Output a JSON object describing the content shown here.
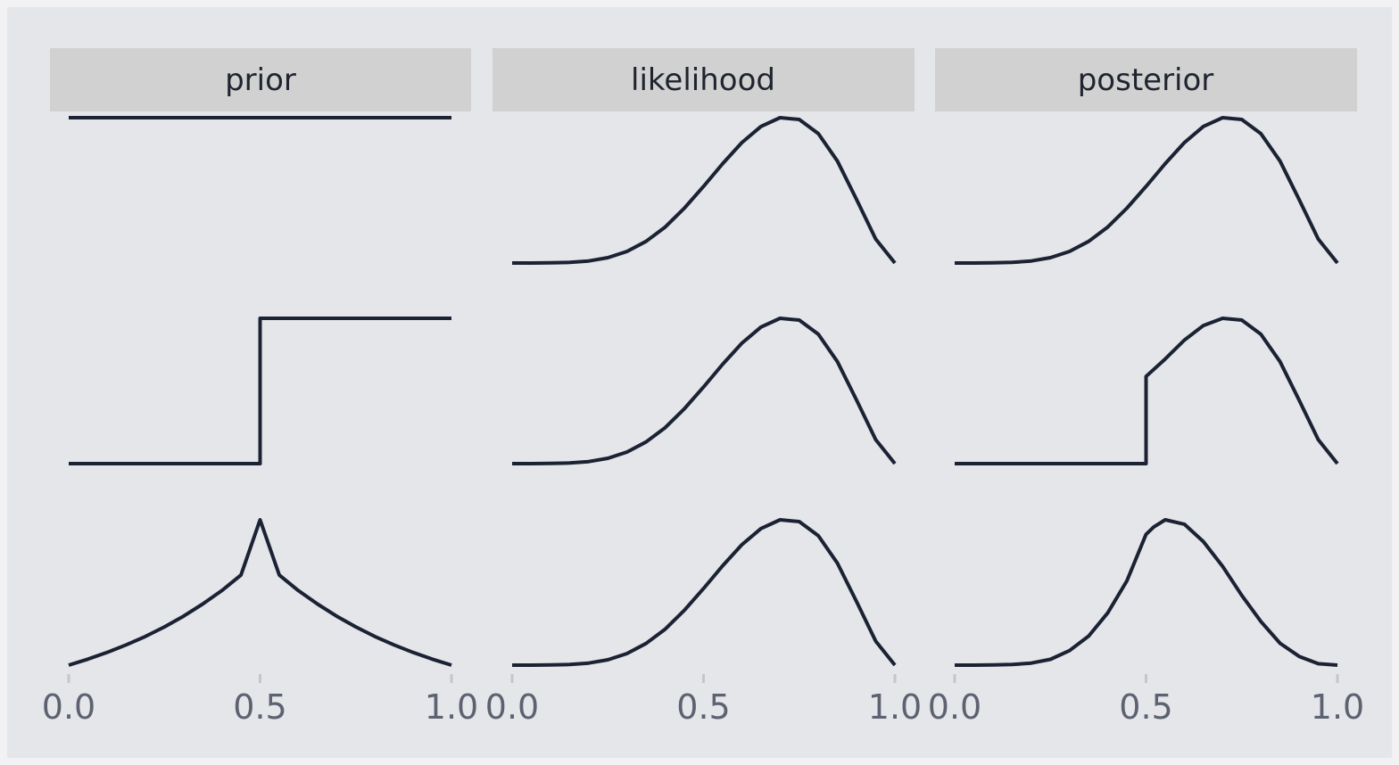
{
  "chart_data": {
    "type": "line",
    "facet_columns": [
      "prior",
      "likelihood",
      "posterior"
    ],
    "x_ticks": [
      "0.0",
      "0.5",
      "1.0"
    ],
    "xlim": [
      0,
      1
    ],
    "grid": false,
    "colors": {
      "page_background": "#f2f2f4",
      "panel_background": "#e5e6ea",
      "strip_background": "#d1d1d1",
      "line": "#1a2233"
    },
    "rows": [
      {
        "prior": {
          "x": [
            0,
            1
          ],
          "y": [
            1,
            1
          ]
        },
        "likelihood": {
          "x": [
            0,
            0.05,
            0.1,
            0.15,
            0.2,
            0.25,
            0.3,
            0.35,
            0.4,
            0.45,
            0.5,
            0.55,
            0.6,
            0.65,
            0.7,
            0.75,
            0.8,
            0.85,
            0.9,
            0.95,
            1.0
          ],
          "y": [
            0,
            0,
            0.001,
            0.004,
            0.014,
            0.037,
            0.08,
            0.149,
            0.248,
            0.377,
            0.527,
            0.684,
            0.828,
            0.94,
            1.0,
            0.988,
            0.89,
            0.701,
            0.436,
            0.165,
            0
          ]
        },
        "posterior": {
          "x": [
            0,
            0.05,
            0.1,
            0.15,
            0.2,
            0.25,
            0.3,
            0.35,
            0.4,
            0.45,
            0.5,
            0.55,
            0.6,
            0.65,
            0.7,
            0.75,
            0.8,
            0.85,
            0.9,
            0.95,
            1.0
          ],
          "y": [
            0,
            0,
            0.001,
            0.004,
            0.014,
            0.037,
            0.08,
            0.149,
            0.248,
            0.377,
            0.527,
            0.684,
            0.828,
            0.94,
            1.0,
            0.988,
            0.89,
            0.701,
            0.436,
            0.165,
            0
          ]
        }
      },
      {
        "prior": {
          "x": [
            0,
            0.5,
            0.5,
            1
          ],
          "y": [
            0,
            0,
            1,
            1
          ]
        },
        "likelihood": {
          "x": [
            0,
            0.05,
            0.1,
            0.15,
            0.2,
            0.25,
            0.3,
            0.35,
            0.4,
            0.45,
            0.5,
            0.55,
            0.6,
            0.65,
            0.7,
            0.75,
            0.8,
            0.85,
            0.9,
            0.95,
            1.0
          ],
          "y": [
            0,
            0,
            0.001,
            0.004,
            0.014,
            0.037,
            0.08,
            0.149,
            0.248,
            0.377,
            0.527,
            0.684,
            0.828,
            0.94,
            1.0,
            0.988,
            0.89,
            0.701,
            0.436,
            0.165,
            0
          ]
        },
        "posterior": {
          "x": [
            0,
            0.5,
            0.5,
            0.55,
            0.6,
            0.65,
            0.7,
            0.75,
            0.8,
            0.85,
            0.9,
            0.95,
            1.0
          ],
          "y": [
            0,
            0,
            0.6,
            0.72,
            0.85,
            0.95,
            1.0,
            0.988,
            0.89,
            0.701,
            0.436,
            0.165,
            0
          ]
        }
      },
      {
        "prior": {
          "x": [
            0,
            0.05,
            0.1,
            0.15,
            0.2,
            0.25,
            0.3,
            0.35,
            0.4,
            0.45,
            0.5,
            0.55,
            0.6,
            0.65,
            0.7,
            0.75,
            0.8,
            0.85,
            0.9,
            0.95,
            1.0
          ],
          "y": [
            0,
            0.041,
            0.087,
            0.139,
            0.197,
            0.263,
            0.337,
            0.42,
            0.513,
            0.62,
            1.0,
            0.62,
            0.513,
            0.42,
            0.337,
            0.263,
            0.197,
            0.139,
            0.087,
            0.041,
            0
          ]
        },
        "likelihood": {
          "x": [
            0,
            0.05,
            0.1,
            0.15,
            0.2,
            0.25,
            0.3,
            0.35,
            0.4,
            0.45,
            0.5,
            0.55,
            0.6,
            0.65,
            0.7,
            0.75,
            0.8,
            0.85,
            0.9,
            0.95,
            1.0
          ],
          "y": [
            0,
            0,
            0.001,
            0.004,
            0.014,
            0.037,
            0.08,
            0.149,
            0.248,
            0.377,
            0.527,
            0.684,
            0.828,
            0.94,
            1.0,
            0.988,
            0.89,
            0.701,
            0.436,
            0.165,
            0
          ]
        },
        "posterior": {
          "x": [
            0,
            0.05,
            0.1,
            0.15,
            0.2,
            0.25,
            0.3,
            0.35,
            0.4,
            0.45,
            0.5,
            0.52,
            0.55,
            0.6,
            0.65,
            0.7,
            0.75,
            0.8,
            0.85,
            0.9,
            0.95,
            1.0
          ],
          "y": [
            0,
            0,
            0.001,
            0.004,
            0.014,
            0.04,
            0.1,
            0.2,
            0.36,
            0.58,
            0.9,
            0.95,
            1.0,
            0.97,
            0.85,
            0.68,
            0.48,
            0.3,
            0.15,
            0.06,
            0.01,
            0
          ]
        }
      }
    ]
  }
}
